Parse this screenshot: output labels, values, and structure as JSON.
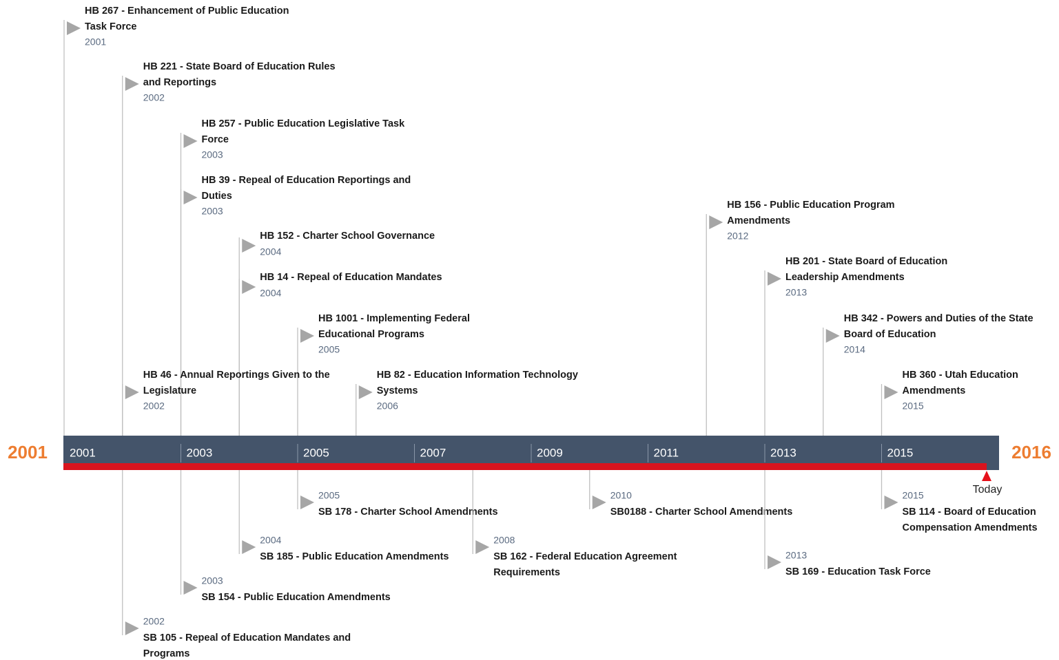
{
  "timeline": {
    "start_label": 2001,
    "end_label": 2016,
    "today_label": "Today",
    "axis_labels": [
      2001,
      2003,
      2005,
      2007,
      2009,
      2011,
      2013,
      2015
    ],
    "above": [
      {
        "title": [
          "HB 267 - Enhancement of Public Education",
          "Task Force"
        ],
        "year": 2001
      },
      {
        "title": [
          "HB 221 - State Board of Education Rules",
          "and Reportings"
        ],
        "year": 2002
      },
      {
        "title": [
          "HB 257 - Public Education Legislative Task",
          "Force"
        ],
        "year": 2003
      },
      {
        "title": [
          "HB 39 - Repeal of Education Reportings and",
          "Duties"
        ],
        "year": 2003
      },
      {
        "title": [
          "HB 152 - Charter School Governance"
        ],
        "year": 2004
      },
      {
        "title": [
          "HB 14 - Repeal of Education Mandates"
        ],
        "year": 2004
      },
      {
        "title": [
          "HB 1001 - Implementing Federal",
          "Educational Programs"
        ],
        "year": 2005
      },
      {
        "title": [
          "HB 46 - Annual Reportings Given to the",
          "Legislature"
        ],
        "year": 2002
      },
      {
        "title": [
          "HB 82 - Education Information Technology",
          "Systems"
        ],
        "year": 2006
      },
      {
        "title": [
          "HB 156 - Public Education Program",
          "Amendments"
        ],
        "year": 2012
      },
      {
        "title": [
          "HB 201 - State Board of Education",
          "Leadership Amendments"
        ],
        "year": 2013
      },
      {
        "title": [
          "HB 342 - Powers and Duties of the State",
          "Board of Education"
        ],
        "year": 2014
      },
      {
        "title": [
          "HB 360 - Utah Education",
          "Amendments"
        ],
        "year": 2015
      }
    ],
    "below": [
      {
        "title": [
          "SB 178 - Charter School Amendments"
        ],
        "year": 2005
      },
      {
        "title": [
          "SB 185 - Public Education Amendments"
        ],
        "year": 2004
      },
      {
        "title": [
          "SB 162 - Federal Education Agreement",
          "Requirements"
        ],
        "year": 2008
      },
      {
        "title": [
          "SB0188 - Charter School Amendments"
        ],
        "year": 2010
      },
      {
        "title": [
          "SB 154 - Public Education Amendments"
        ],
        "year": 2003
      },
      {
        "title": [
          "SB 105 - Repeal of Education Mandates and",
          "Programs"
        ],
        "year": 2002
      },
      {
        "title": [
          "SB 169 - Education Task Force"
        ],
        "year": 2013
      },
      {
        "title": [
          "SB 114 - Board of Education",
          "Compensation Amendments"
        ],
        "year": 2015
      }
    ]
  }
}
